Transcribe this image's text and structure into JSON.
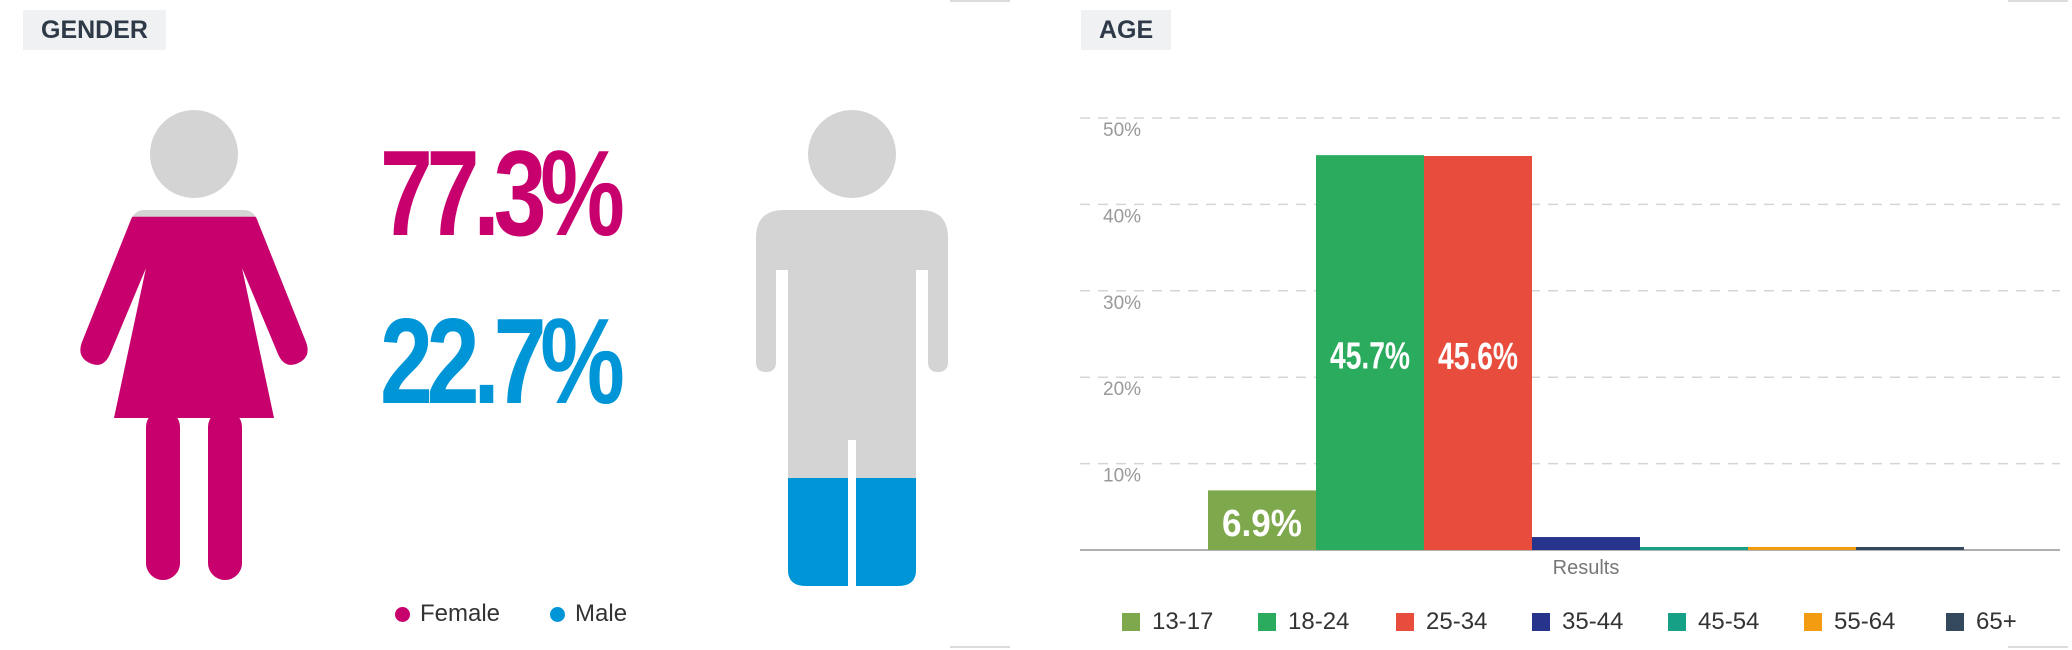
{
  "gender": {
    "title": "GENDER",
    "female": {
      "label": "Female",
      "value_text": "77.3%",
      "fraction": 0.773,
      "color": "#c8006e"
    },
    "male": {
      "label": "Male",
      "value_text": "22.7%",
      "fraction": 0.227,
      "color": "#0095d6"
    },
    "neutral_color": "#d4d4d4"
  },
  "age": {
    "title": "AGE",
    "chart_data": {
      "type": "bar",
      "xlabel": "Results",
      "ylim": [
        0,
        50
      ],
      "yticks": [
        "10%",
        "20%",
        "30%",
        "40%",
        "50%"
      ],
      "ytick_values": [
        10,
        20,
        30,
        40,
        50
      ],
      "grid": true,
      "legend": "bottom",
      "series": [
        {
          "name": "13-17",
          "value": 6.9,
          "label": "6.9%",
          "color": "#7ea84c"
        },
        {
          "name": "18-24",
          "value": 45.7,
          "label": "45.7%",
          "color": "#2aab5d"
        },
        {
          "name": "25-34",
          "value": 45.6,
          "label": "45.6%",
          "color": "#e84c3d"
        },
        {
          "name": "35-44",
          "value": 1.5,
          "label": "",
          "color": "#27348b"
        },
        {
          "name": "45-54",
          "value": 0.3,
          "label": "",
          "color": "#16a085"
        },
        {
          "name": "55-64",
          "value": 0.3,
          "label": "",
          "color": "#f39c12"
        },
        {
          "name": "65+",
          "value": 0.2,
          "label": "",
          "color": "#34495e"
        }
      ]
    }
  }
}
